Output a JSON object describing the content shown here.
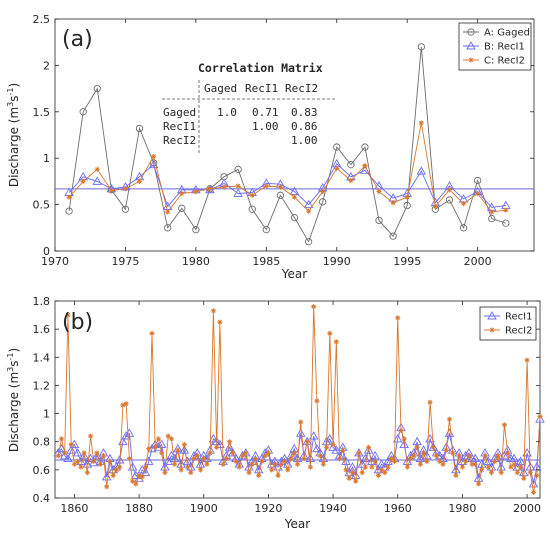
{
  "chart_data": [
    {
      "panel_label": "(a)",
      "type": "line",
      "xlabel": "Year",
      "ylabel": "Discharge (m³s⁻¹)",
      "ylabel_main": "Discharge (m",
      "ylabel_sup1": "3",
      "ylabel_mid": "s",
      "ylabel_sup2": "-1",
      "ylabel_end": ")",
      "xlim": [
        1970,
        2004
      ],
      "ylim": [
        0,
        2.5
      ],
      "xticks": [
        "1970",
        "1975",
        "1980",
        "1985",
        "1990",
        "1995",
        "2000"
      ],
      "yticks": [
        "0",
        "0.5",
        "1",
        "1.5",
        "2",
        "2.5"
      ],
      "mean_line": 0.67,
      "legend_position": "top-right",
      "x": [
        1971,
        1972,
        1973,
        1974,
        1975,
        1976,
        1977,
        1978,
        1979,
        1980,
        1981,
        1982,
        1983,
        1984,
        1985,
        1986,
        1987,
        1988,
        1989,
        1990,
        1991,
        1992,
        1993,
        1994,
        1995,
        1996,
        1997,
        1998,
        1999,
        2000,
        2001,
        2002
      ],
      "series": [
        {
          "name": "A: Gaged",
          "color": "#6e6e6e",
          "marker": "circle",
          "values": [
            0.43,
            1.5,
            1.75,
            0.66,
            0.45,
            1.32,
            0.95,
            0.25,
            0.46,
            0.23,
            0.67,
            0.8,
            0.88,
            0.45,
            0.23,
            0.6,
            0.36,
            0.1,
            0.53,
            1.12,
            0.93,
            1.12,
            0.33,
            0.16,
            0.49,
            2.2,
            0.45,
            0.55,
            0.25,
            0.76,
            0.35,
            0.3
          ]
        },
        {
          "name": "B: RecI1",
          "color": "#6b6bff",
          "marker": "triangle",
          "values": [
            0.63,
            0.8,
            0.75,
            0.67,
            0.69,
            0.8,
            0.93,
            0.48,
            0.66,
            0.66,
            0.66,
            0.73,
            0.62,
            0.63,
            0.73,
            0.72,
            0.64,
            0.5,
            0.68,
            0.94,
            0.8,
            0.87,
            0.7,
            0.57,
            0.62,
            0.86,
            0.52,
            0.7,
            0.56,
            0.64,
            0.47,
            0.49
          ]
        },
        {
          "name": "C: RecI2",
          "color": "#d9772b",
          "marker": "star",
          "values": [
            0.58,
            0.75,
            0.88,
            0.65,
            0.67,
            0.75,
            1.02,
            0.42,
            0.62,
            0.64,
            0.67,
            0.69,
            0.7,
            0.6,
            0.7,
            0.69,
            0.58,
            0.43,
            0.64,
            0.89,
            0.76,
            0.92,
            0.64,
            0.52,
            0.58,
            1.38,
            0.48,
            0.66,
            0.51,
            0.62,
            0.42,
            0.44
          ]
        }
      ],
      "correlation_matrix": {
        "title": "Correlation Matrix",
        "columns": [
          "Gaged",
          "RecI1",
          "RecI2"
        ],
        "rows": [
          {
            "label": "Gaged",
            "values": [
              "1.0",
              "0.71",
              "0.83"
            ]
          },
          {
            "label": "RecI1",
            "values": [
              "",
              "1.00",
              "0.86"
            ]
          },
          {
            "label": "RecI2",
            "values": [
              "",
              "",
              "1.00"
            ]
          }
        ]
      }
    },
    {
      "panel_label": "(b)",
      "type": "line",
      "xlabel": "Year",
      "ylabel_main": "Discharge (m",
      "ylabel_sup1": "3",
      "ylabel_mid": "s",
      "ylabel_sup2": "-1",
      "ylabel_end": ")",
      "xlim": [
        1854,
        2004
      ],
      "ylim": [
        0.4,
        1.8
      ],
      "xticks": [
        "1860",
        "1880",
        "1900",
        "1920",
        "1940",
        "1960",
        "1980",
        "2000"
      ],
      "yticks": [
        "0.4",
        "0.6",
        "0.8",
        "1",
        "1.2",
        "1.4",
        "1.6",
        "1.8"
      ],
      "mean_line": 0.67,
      "legend_position": "top-right",
      "x_start": 1855,
      "x_end": 2004,
      "series": [
        {
          "name": "RecI1",
          "color": "#6b6bff",
          "marker": "triangle",
          "values": [
            0.72,
            0.75,
            0.7,
            0.68,
            0.74,
            0.78,
            0.72,
            0.66,
            0.7,
            0.64,
            0.68,
            0.65,
            0.7,
            0.66,
            0.72,
            0.55,
            0.68,
            0.6,
            0.62,
            0.67,
            0.8,
            0.84,
            0.86,
            0.62,
            0.56,
            0.54,
            0.6,
            0.58,
            0.66,
            0.75,
            0.78,
            0.76,
            0.78,
            0.62,
            0.66,
            0.7,
            0.68,
            0.75,
            0.64,
            0.74,
            0.66,
            0.62,
            0.7,
            0.72,
            0.64,
            0.7,
            0.68,
            0.74,
            0.82,
            0.8,
            0.78,
            0.66,
            0.7,
            0.76,
            0.72,
            0.68,
            0.64,
            0.7,
            0.72,
            0.62,
            0.66,
            0.7,
            0.6,
            0.68,
            0.72,
            0.74,
            0.64,
            0.66,
            0.62,
            0.66,
            0.68,
            0.64,
            0.7,
            0.75,
            0.68,
            0.86,
            0.7,
            0.8,
            0.68,
            0.84,
            0.75,
            0.72,
            0.68,
            0.8,
            0.82,
            0.76,
            0.74,
            0.7,
            0.76,
            0.66,
            0.58,
            0.62,
            0.56,
            0.72,
            0.64,
            0.68,
            0.74,
            0.66,
            0.7,
            0.6,
            0.64,
            0.62,
            0.66,
            0.7,
            0.68,
            0.82,
            0.9,
            0.78,
            0.66,
            0.7,
            0.72,
            0.8,
            0.68,
            0.74,
            0.7,
            0.82,
            0.76,
            0.72,
            0.7,
            0.68,
            0.76,
            0.86,
            0.74,
            0.6,
            0.72,
            0.66,
            0.7,
            0.72,
            0.68,
            0.68,
            0.54,
            0.64,
            0.72,
            0.66,
            0.62,
            0.68,
            0.72,
            0.62,
            0.7,
            0.74,
            0.68,
            0.68,
            0.62,
            0.66,
            0.58,
            0.72,
            0.62,
            0.5,
            0.62,
            0.96
          ]
        },
        {
          "name": "RecI2",
          "color": "#d9772b",
          "marker": "star",
          "values": [
            0.7,
            0.82,
            0.72,
            1.7,
            0.78,
            0.64,
            0.66,
            0.62,
            0.72,
            0.58,
            0.84,
            0.66,
            0.72,
            0.64,
            0.7,
            0.48,
            0.66,
            0.56,
            0.6,
            0.62,
            1.06,
            1.07,
            0.68,
            0.52,
            0.5,
            0.56,
            0.55,
            0.62,
            0.75,
            1.57,
            0.76,
            0.82,
            0.72,
            0.58,
            0.84,
            0.82,
            0.64,
            0.74,
            0.6,
            0.78,
            0.62,
            0.58,
            0.68,
            0.7,
            0.6,
            0.68,
            0.64,
            0.72,
            1.73,
            0.76,
            1.65,
            0.64,
            0.68,
            0.8,
            0.72,
            0.66,
            0.62,
            0.7,
            0.72,
            0.58,
            0.64,
            0.68,
            0.56,
            0.66,
            0.7,
            0.72,
            0.6,
            0.64,
            0.56,
            0.64,
            0.66,
            0.6,
            0.68,
            0.72,
            0.64,
            0.94,
            0.68,
            0.8,
            0.62,
            1.76,
            1.09,
            0.7,
            0.64,
            0.76,
            1.57,
            0.78,
            1.51,
            0.68,
            0.74,
            0.6,
            0.54,
            0.58,
            0.52,
            0.72,
            0.58,
            0.62,
            0.76,
            0.62,
            0.66,
            0.56,
            0.6,
            0.58,
            0.62,
            0.68,
            0.66,
            1.68,
            0.88,
            0.82,
            0.62,
            0.68,
            0.7,
            0.76,
            0.64,
            0.72,
            0.66,
            1.08,
            0.76,
            0.7,
            0.66,
            0.64,
            0.74,
            0.96,
            0.72,
            0.56,
            0.7,
            0.62,
            0.66,
            0.7,
            0.64,
            0.64,
            0.5,
            0.6,
            0.7,
            0.62,
            0.58,
            0.66,
            0.7,
            0.58,
            0.92,
            0.72,
            0.62,
            0.64,
            0.58,
            0.62,
            0.54,
            1.38,
            0.58,
            0.44,
            0.56,
            0.98
          ]
        }
      ]
    }
  ]
}
